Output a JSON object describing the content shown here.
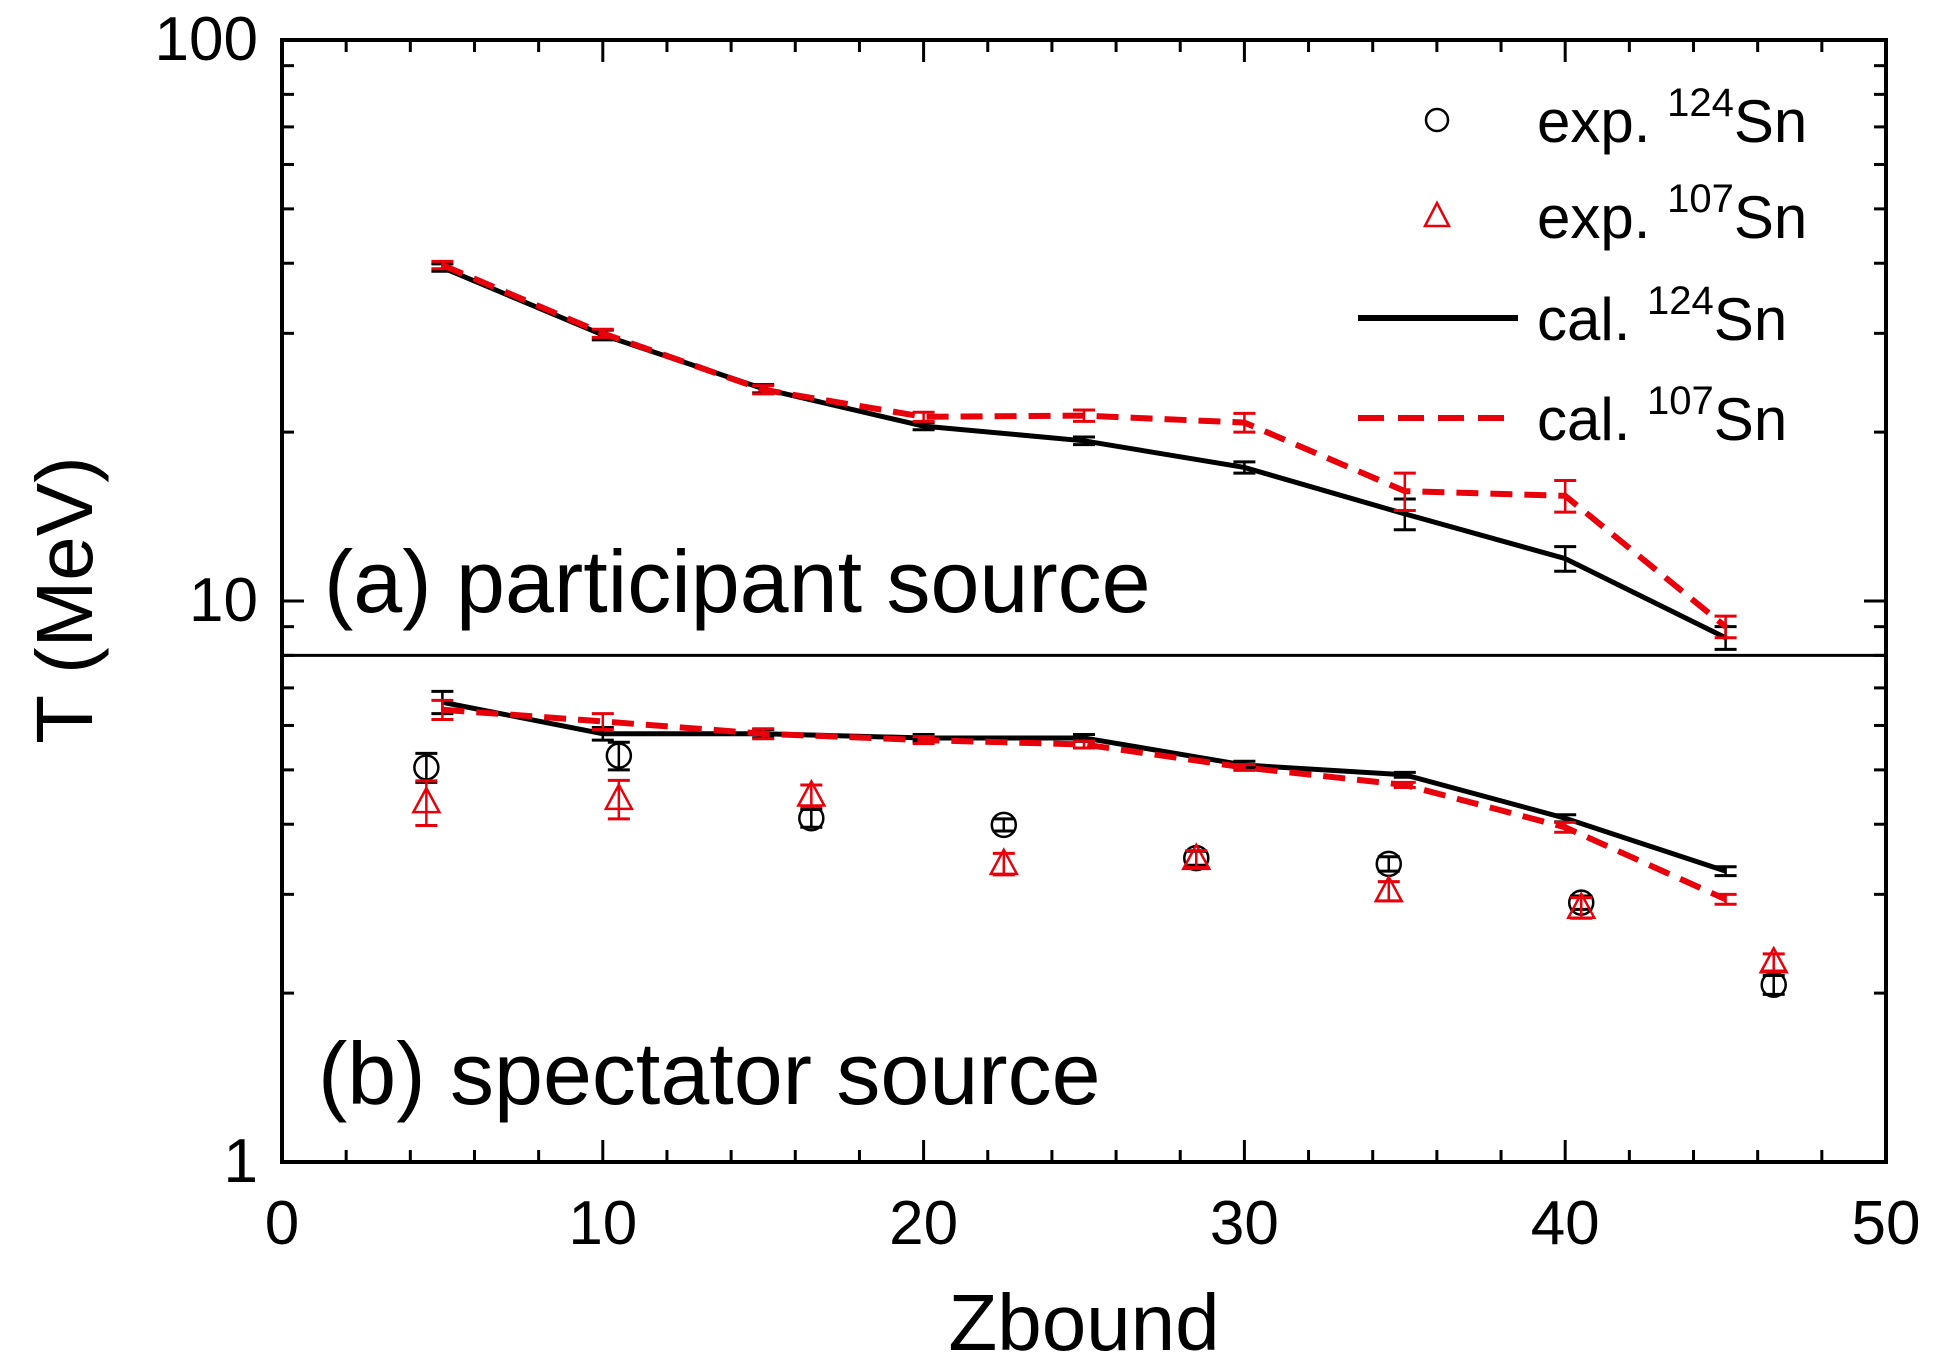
{
  "chart_data": {
    "type": "line",
    "xlabel": "Zbound",
    "ylabel": "T (MeV)",
    "xlim": [
      0,
      50
    ],
    "ylim": [
      1,
      100
    ],
    "yscale": "log",
    "x_ticks": [
      "0",
      "10",
      "20",
      "30",
      "40",
      "50"
    ],
    "y_ticks": [
      "1",
      "10",
      "100"
    ],
    "panel_divider_value": 8.0,
    "panels": [
      {
        "label": "(a) participant source",
        "position": "upper"
      },
      {
        "label": "(b) spectator source",
        "position": "lower"
      }
    ],
    "legend": {
      "placement": "top-right",
      "entries": [
        {
          "prefix": "exp. ",
          "sup": "124",
          "suffix": "Sn",
          "marker": "circle",
          "color": "#000000"
        },
        {
          "prefix": "exp. ",
          "sup": "107",
          "suffix": "Sn",
          "marker": "triangle",
          "color": "#e8000b"
        },
        {
          "prefix": "cal. ",
          "sup": "124",
          "suffix": "Sn",
          "marker": "solid-line",
          "color": "#000000"
        },
        {
          "prefix": "cal. ",
          "sup": "107",
          "suffix": "Sn",
          "marker": "dashed-line",
          "color": "#e8000b"
        }
      ]
    },
    "series": [
      {
        "name": "cal. 124Sn participant",
        "style": "solid",
        "color": "#000000",
        "x": [
          5,
          10,
          15,
          20,
          25,
          30,
          35,
          40,
          45
        ],
        "y": [
          39.3,
          29.8,
          23.9,
          20.5,
          19.3,
          17.3,
          14.3,
          11.9,
          8.6
        ],
        "err": [
          0.6,
          0.6,
          0.4,
          0.3,
          0.3,
          0.4,
          0.9,
          0.6,
          0.4
        ]
      },
      {
        "name": "cal. 107Sn participant",
        "style": "dashed",
        "color": "#e8000b",
        "x": [
          5,
          10,
          15,
          20,
          25,
          30,
          35,
          40,
          45
        ],
        "y": [
          39.7,
          30.0,
          23.8,
          21.3,
          21.4,
          20.8,
          15.7,
          15.4,
          9.0
        ],
        "err": [
          0.6,
          0.5,
          0.4,
          0.4,
          0.5,
          0.8,
          1.2,
          1.0,
          0.4
        ]
      },
      {
        "name": "cal. 124Sn spectator",
        "style": "solid",
        "color": "#000000",
        "x": [
          5,
          10,
          15,
          20,
          25,
          30,
          35,
          40,
          45
        ],
        "y": [
          6.6,
          5.8,
          5.8,
          5.7,
          5.7,
          5.1,
          4.9,
          4.1,
          3.3
        ],
        "err": [
          0.3,
          0.15,
          0.1,
          0.08,
          0.08,
          0.08,
          0.05,
          0.06,
          0.06
        ]
      },
      {
        "name": "cal. 107Sn spectator",
        "style": "dashed",
        "color": "#e8000b",
        "x": [
          5,
          10,
          15,
          20,
          25,
          30,
          35,
          40,
          45
        ],
        "y": [
          6.4,
          6.1,
          5.8,
          5.65,
          5.55,
          5.05,
          4.7,
          3.95,
          2.94
        ],
        "err": [
          0.25,
          0.2,
          0.12,
          0.08,
          0.08,
          0.06,
          0.05,
          0.08,
          0.06
        ]
      },
      {
        "name": "exp. 124Sn",
        "style": "circle",
        "color": "#000000",
        "x": [
          4.5,
          10.5,
          16.5,
          22.5,
          28.5,
          34.5,
          40.5,
          46.5
        ],
        "y": [
          5.05,
          5.3,
          4.1,
          3.99,
          3.48,
          3.4,
          2.9,
          2.07
        ],
        "err": [
          0.3,
          0.3,
          0.15,
          0.1,
          0.1,
          0.1,
          0.08,
          0.08
        ]
      },
      {
        "name": "exp. 107Sn",
        "style": "triangle",
        "color": "#e8000b",
        "x": [
          4.5,
          10.5,
          16.5,
          22.5,
          28.5,
          34.5,
          40.5,
          46.5
        ],
        "y": [
          4.38,
          4.44,
          4.5,
          3.4,
          3.47,
          3.04,
          2.84,
          2.27
        ],
        "err": [
          0.4,
          0.35,
          0.2,
          0.15,
          0.12,
          0.12,
          0.12,
          0.08
        ]
      }
    ]
  }
}
